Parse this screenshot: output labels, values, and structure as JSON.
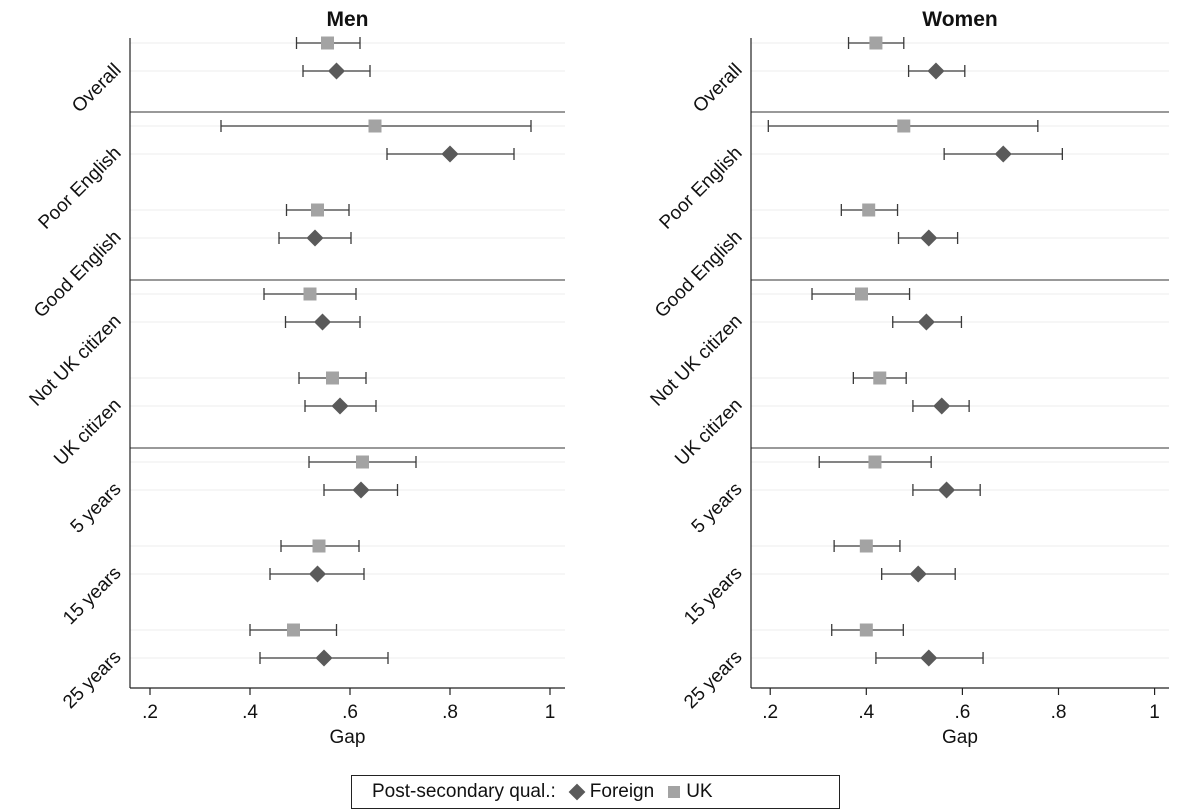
{
  "legend": {
    "title": "Post-secondary qual.:",
    "items": [
      {
        "label": "Foreign",
        "marker": "diamond",
        "color": "#5a5a5a"
      },
      {
        "label": "UK",
        "marker": "square",
        "color": "#a3a3a3"
      }
    ]
  },
  "chart_data": [
    {
      "type": "scatter",
      "title": "Men",
      "xlabel": "Gap",
      "xlim": [
        0.16,
        1.03
      ],
      "xticks": [
        0.2,
        0.4,
        0.6,
        0.8,
        1.0
      ],
      "xtick_labels": [
        ".2",
        ".4",
        ".6",
        ".8",
        "1"
      ],
      "categories": [
        "Overall",
        "Poor English",
        "Good English",
        "Not UK citizen",
        "UK citizen",
        "5 years",
        "15 years",
        "25 years"
      ],
      "groups": [
        [
          "Overall"
        ],
        [
          "Poor English",
          "Good English"
        ],
        [
          "Not UK citizen",
          "UK citizen"
        ],
        [
          "5 years",
          "15 years",
          "25 years"
        ]
      ],
      "grid": true,
      "series": [
        {
          "name": "UK",
          "marker": "square",
          "color": "#a3a3a3",
          "values": [
            0.555,
            0.65,
            0.535,
            0.52,
            0.565,
            0.625,
            0.538,
            0.487
          ],
          "ci_low": [
            0.493,
            0.342,
            0.473,
            0.428,
            0.498,
            0.518,
            0.462,
            0.4
          ],
          "ci_high": [
            0.62,
            0.962,
            0.598,
            0.612,
            0.632,
            0.732,
            0.618,
            0.573
          ]
        },
        {
          "name": "Foreign",
          "marker": "diamond",
          "color": "#5a5a5a",
          "values": [
            0.573,
            0.8,
            0.53,
            0.545,
            0.58,
            0.622,
            0.535,
            0.548
          ],
          "ci_low": [
            0.506,
            0.674,
            0.458,
            0.471,
            0.51,
            0.548,
            0.44,
            0.42
          ],
          "ci_high": [
            0.64,
            0.928,
            0.602,
            0.62,
            0.652,
            0.695,
            0.628,
            0.676
          ]
        }
      ]
    },
    {
      "type": "scatter",
      "title": "Women",
      "xlabel": "Gap",
      "xlim": [
        0.16,
        1.03
      ],
      "xticks": [
        0.2,
        0.4,
        0.6,
        0.8,
        1.0
      ],
      "xtick_labels": [
        ".2",
        ".4",
        ".6",
        ".8",
        "1"
      ],
      "categories": [
        "Overall",
        "Poor English",
        "Good English",
        "Not UK citizen",
        "UK citizen",
        "5 years",
        "15 years",
        "25 years"
      ],
      "groups": [
        [
          "Overall"
        ],
        [
          "Poor English",
          "Good English"
        ],
        [
          "Not UK citizen",
          "UK citizen"
        ],
        [
          "5 years",
          "15 years",
          "25 years"
        ]
      ],
      "grid": true,
      "series": [
        {
          "name": "UK",
          "marker": "square",
          "color": "#a3a3a3",
          "values": [
            0.42,
            0.478,
            0.405,
            0.39,
            0.428,
            0.418,
            0.4,
            0.4
          ],
          "ci_low": [
            0.363,
            0.196,
            0.348,
            0.287,
            0.373,
            0.302,
            0.333,
            0.328
          ],
          "ci_high": [
            0.478,
            0.757,
            0.465,
            0.49,
            0.483,
            0.535,
            0.47,
            0.477
          ]
        },
        {
          "name": "Foreign",
          "marker": "diamond",
          "color": "#5a5a5a",
          "values": [
            0.545,
            0.685,
            0.53,
            0.525,
            0.557,
            0.567,
            0.508,
            0.53
          ],
          "ci_low": [
            0.488,
            0.562,
            0.467,
            0.455,
            0.497,
            0.497,
            0.432,
            0.42
          ],
          "ci_high": [
            0.605,
            0.808,
            0.59,
            0.598,
            0.614,
            0.637,
            0.585,
            0.643
          ]
        }
      ]
    }
  ]
}
